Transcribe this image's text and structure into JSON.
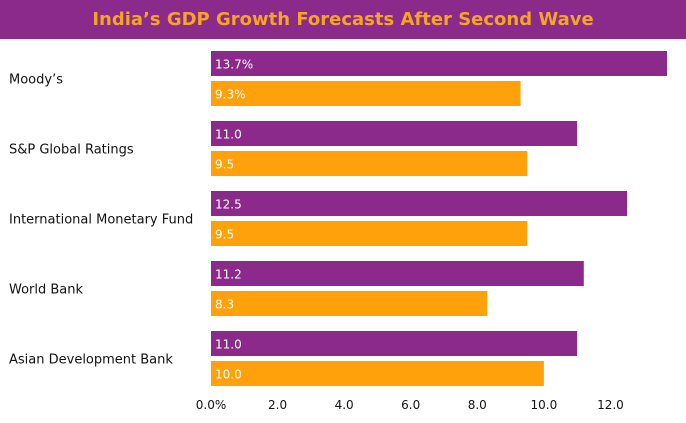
{
  "title": "India’s GDP Growth Forecasts After Second Wave",
  "colors": {
    "header_bg": "#8b2a8b",
    "header_text": "#f5a524",
    "series_1": "#8b2a8b",
    "series_2": "#ffa10a"
  },
  "chart_data": {
    "type": "bar",
    "orientation": "horizontal",
    "title": "India’s GDP Growth Forecasts After Second Wave",
    "categories": [
      "Moody’s",
      "S&P Global Ratings",
      "International Monetary Fund",
      "World Bank",
      "Asian Development Bank"
    ],
    "series": [
      {
        "values": [
          13.7,
          11.0,
          12.5,
          11.2,
          11.0
        ],
        "labels": [
          "13.7%",
          "11.0",
          "12.5",
          "11.2",
          "11.0"
        ],
        "color": "#8b2a8b"
      },
      {
        "values": [
          9.3,
          9.5,
          9.5,
          8.3,
          10.0
        ],
        "labels": [
          "9.3%",
          "9.5",
          "9.5",
          "8.3",
          "10.0"
        ],
        "color": "#ffa10a"
      }
    ],
    "x_ticks": [
      "0.0%",
      "2.0",
      "4.0",
      "6.0",
      "8.0",
      "10.0",
      "12.0"
    ],
    "x_tick_values": [
      0,
      2,
      4,
      6,
      8,
      10,
      12
    ],
    "xlim": [
      0,
      14
    ],
    "grid": false,
    "legend": "none"
  }
}
